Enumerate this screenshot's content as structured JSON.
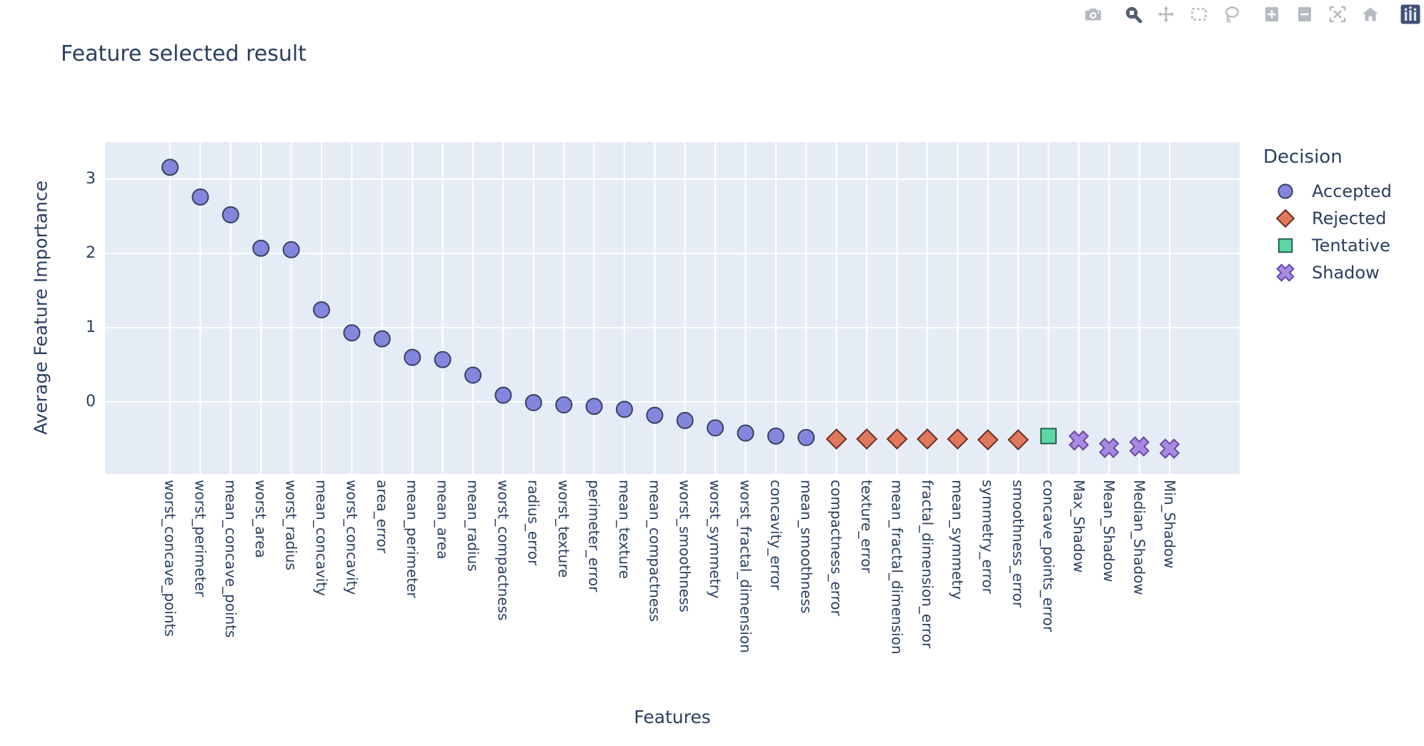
{
  "title": "Feature selected result",
  "colors": {
    "text": "#2a3f5f",
    "plot_background": "#e5ecf6",
    "grid": "#ffffff",
    "accepted": "#8486dd",
    "accepted_border": "#3a3f63",
    "rejected": "#e0785e",
    "rejected_border": "#6b2e21",
    "tentative": "#5ed7a4",
    "tentative_border": "#265f52",
    "shadow": "#a88ae0",
    "shadow_border": "#6747a8",
    "modebar_icon": "#b6bac2",
    "modebar_active": "#556075",
    "logo_background": "#3f4f75"
  },
  "modebar_icons": [
    "camera-icon",
    "zoom-icon",
    "pan-icon",
    "box-select-icon",
    "lasso-select-icon",
    "zoom-in-icon",
    "zoom-out-icon",
    "autoscale-icon",
    "reset-axes-home-icon",
    "plotly-logo-icon"
  ],
  "chart_data": {
    "type": "scatter",
    "title": "Feature selected result",
    "xlabel": "Features",
    "ylabel": "Average Feature Importance",
    "ylim": [
      -0.97,
      3.5
    ],
    "yticks": [
      0,
      1,
      2,
      3
    ],
    "grid": true,
    "legend_title": "Decision",
    "legend_position": "right",
    "categories": [
      "worst_concave_points",
      "worst_perimeter",
      "mean_concave_points",
      "worst_area",
      "worst_radius",
      "mean_concavity",
      "worst_concavity",
      "area_error",
      "mean_perimeter",
      "mean_area",
      "mean_radius",
      "worst_compactness",
      "radius_error",
      "worst_texture",
      "perimeter_error",
      "mean_texture",
      "mean_compactness",
      "worst_smoothness",
      "worst_symmetry",
      "worst_fractal_dimension",
      "concavity_error",
      "mean_smoothness",
      "compactness_error",
      "texture_error",
      "mean_fractal_dimension",
      "fractal_dimension_error",
      "mean_symmetry",
      "symmetry_error",
      "smoothness_error",
      "concave_points_error",
      "Max_Shadow",
      "Mean_Shadow",
      "Median_Shadow",
      "Min_Shadow"
    ],
    "series": [
      {
        "name": "Accepted",
        "marker": "circle",
        "color": "#8486dd",
        "line_color": "#3a3f63",
        "points": [
          {
            "category": "worst_concave_points",
            "value": 3.16
          },
          {
            "category": "worst_perimeter",
            "value": 2.76
          },
          {
            "category": "mean_concave_points",
            "value": 2.52
          },
          {
            "category": "worst_area",
            "value": 2.07
          },
          {
            "category": "worst_radius",
            "value": 2.05
          },
          {
            "category": "mean_concavity",
            "value": 1.24
          },
          {
            "category": "worst_concavity",
            "value": 0.93
          },
          {
            "category": "area_error",
            "value": 0.85
          },
          {
            "category": "mean_perimeter",
            "value": 0.6
          },
          {
            "category": "mean_area",
            "value": 0.57
          },
          {
            "category": "mean_radius",
            "value": 0.36
          },
          {
            "category": "worst_compactness",
            "value": 0.09
          },
          {
            "category": "radius_error",
            "value": -0.01
          },
          {
            "category": "worst_texture",
            "value": -0.04
          },
          {
            "category": "perimeter_error",
            "value": -0.06
          },
          {
            "category": "mean_texture",
            "value": -0.1
          },
          {
            "category": "mean_compactness",
            "value": -0.18
          },
          {
            "category": "worst_smoothness",
            "value": -0.25
          },
          {
            "category": "worst_symmetry",
            "value": -0.35
          },
          {
            "category": "worst_fractal_dimension",
            "value": -0.42
          },
          {
            "category": "concavity_error",
            "value": -0.46
          },
          {
            "category": "mean_smoothness",
            "value": -0.48
          }
        ]
      },
      {
        "name": "Rejected",
        "marker": "diamond",
        "color": "#e0785e",
        "line_color": "#6b2e21",
        "points": [
          {
            "category": "compactness_error",
            "value": -0.5
          },
          {
            "category": "texture_error",
            "value": -0.5
          },
          {
            "category": "mean_fractal_dimension",
            "value": -0.5
          },
          {
            "category": "fractal_dimension_error",
            "value": -0.5
          },
          {
            "category": "mean_symmetry",
            "value": -0.5
          },
          {
            "category": "symmetry_error",
            "value": -0.51
          },
          {
            "category": "smoothness_error",
            "value": -0.51
          }
        ]
      },
      {
        "name": "Tentative",
        "marker": "square",
        "color": "#5ed7a4",
        "line_color": "#265f52",
        "points": [
          {
            "category": "concave_points_error",
            "value": -0.46
          }
        ]
      },
      {
        "name": "Shadow",
        "marker": "x",
        "color": "#a88ae0",
        "line_color": "#6747a8",
        "points": [
          {
            "category": "Max_Shadow",
            "value": -0.52
          },
          {
            "category": "Mean_Shadow",
            "value": -0.62
          },
          {
            "category": "Median_Shadow",
            "value": -0.6
          },
          {
            "category": "Min_Shadow",
            "value": -0.63
          }
        ]
      }
    ]
  }
}
